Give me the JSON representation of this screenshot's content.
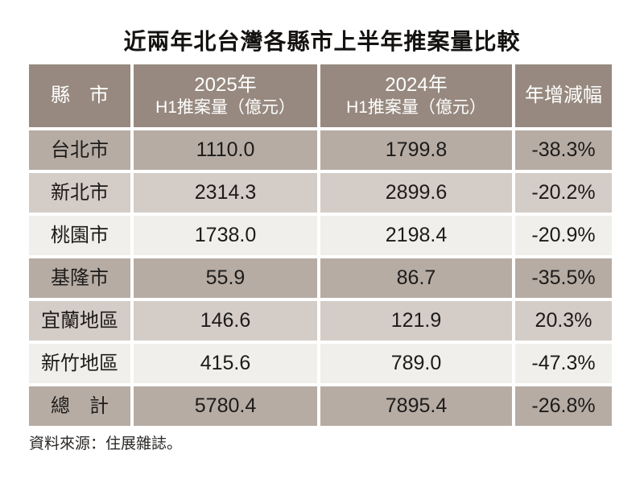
{
  "title": "近兩年北台灣各縣市上半年推案量比較",
  "source": "資料來源：住展雜誌。",
  "colors": {
    "header_bg": "#97897f",
    "row_dark_bg": "#b6aca4",
    "row_medium_bg": "#d4ccc6",
    "row_light_bg": "#f1efeb",
    "header_text": "#ffffff",
    "body_text": "#1d1b1a",
    "page_bg": "#ffffff"
  },
  "table": {
    "header": {
      "col0": "縣　市",
      "col1_line1": "2025年",
      "col1_line2": "H1推案量（億元）",
      "col2_line1": "2024年",
      "col2_line2": "H1推案量（億元）",
      "col3": "年增減幅"
    },
    "rows": [
      {
        "region": "台北市",
        "v2025": "1110.0",
        "v2024": "1799.8",
        "yoy": "-38.3%"
      },
      {
        "region": "新北市",
        "v2025": "2314.3",
        "v2024": "2899.6",
        "yoy": "-20.2%"
      },
      {
        "region": "桃園市",
        "v2025": "1738.0",
        "v2024": "2198.4",
        "yoy": "-20.9%"
      },
      {
        "region": "基隆市",
        "v2025": "55.9",
        "v2024": "86.7",
        "yoy": "-35.5%"
      },
      {
        "region": "宜蘭地區",
        "v2025": "146.6",
        "v2024": "121.9",
        "yoy": "20.3%"
      },
      {
        "region": "新竹地區",
        "v2025": "415.6",
        "v2024": "789.0",
        "yoy": "-47.3%"
      },
      {
        "region": "總　計",
        "v2025": "5780.4",
        "v2024": "7895.4",
        "yoy": "-26.8%"
      }
    ]
  },
  "chart_data": {
    "type": "table",
    "title": "近兩年北台灣各縣市上半年推案量比較",
    "columns": [
      "縣　市",
      "2025年 H1推案量（億元）",
      "2024年 H1推案量（億元）",
      "年增減幅"
    ],
    "categories": [
      "台北市",
      "新北市",
      "桃園市",
      "基隆市",
      "宜蘭地區",
      "新竹地區",
      "總　計"
    ],
    "series": [
      {
        "name": "2025年H1推案量（億元）",
        "values": [
          1110.0,
          2314.3,
          1738.0,
          55.9,
          146.6,
          415.6,
          5780.4
        ]
      },
      {
        "name": "2024年H1推案量（億元）",
        "values": [
          1799.8,
          2899.6,
          2198.4,
          86.7,
          121.9,
          789.0,
          7895.4
        ]
      },
      {
        "name": "年增減幅(%)",
        "values": [
          -38.3,
          -20.2,
          -20.9,
          -35.5,
          20.3,
          -47.3,
          -26.8
        ]
      }
    ],
    "source": "資料來源：住展雜誌。"
  }
}
